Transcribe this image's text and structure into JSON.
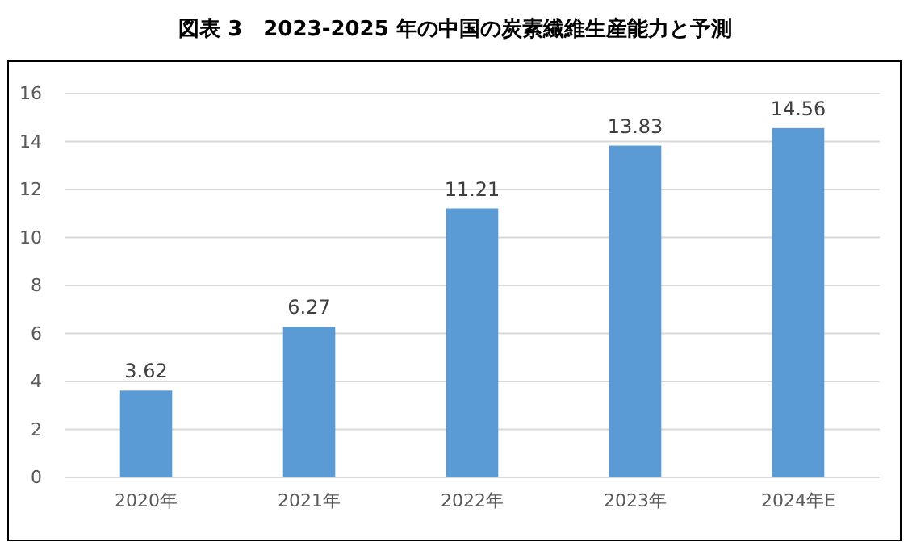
{
  "chart_data": {
    "type": "bar",
    "title": "図表 3　2023-2025 年の中国の炭素繊維生産能力と予測",
    "categories": [
      "2020年",
      "2021年",
      "2022年",
      "2023年",
      "2024年E"
    ],
    "values": [
      3.62,
      6.27,
      11.21,
      13.83,
      14.56
    ],
    "color": "#5b9bd5",
    "ylim": [
      0,
      16
    ],
    "yticks": [
      0,
      2,
      4,
      6,
      8,
      10,
      12,
      14,
      16
    ],
    "grid": "y",
    "data_labels": true
  }
}
